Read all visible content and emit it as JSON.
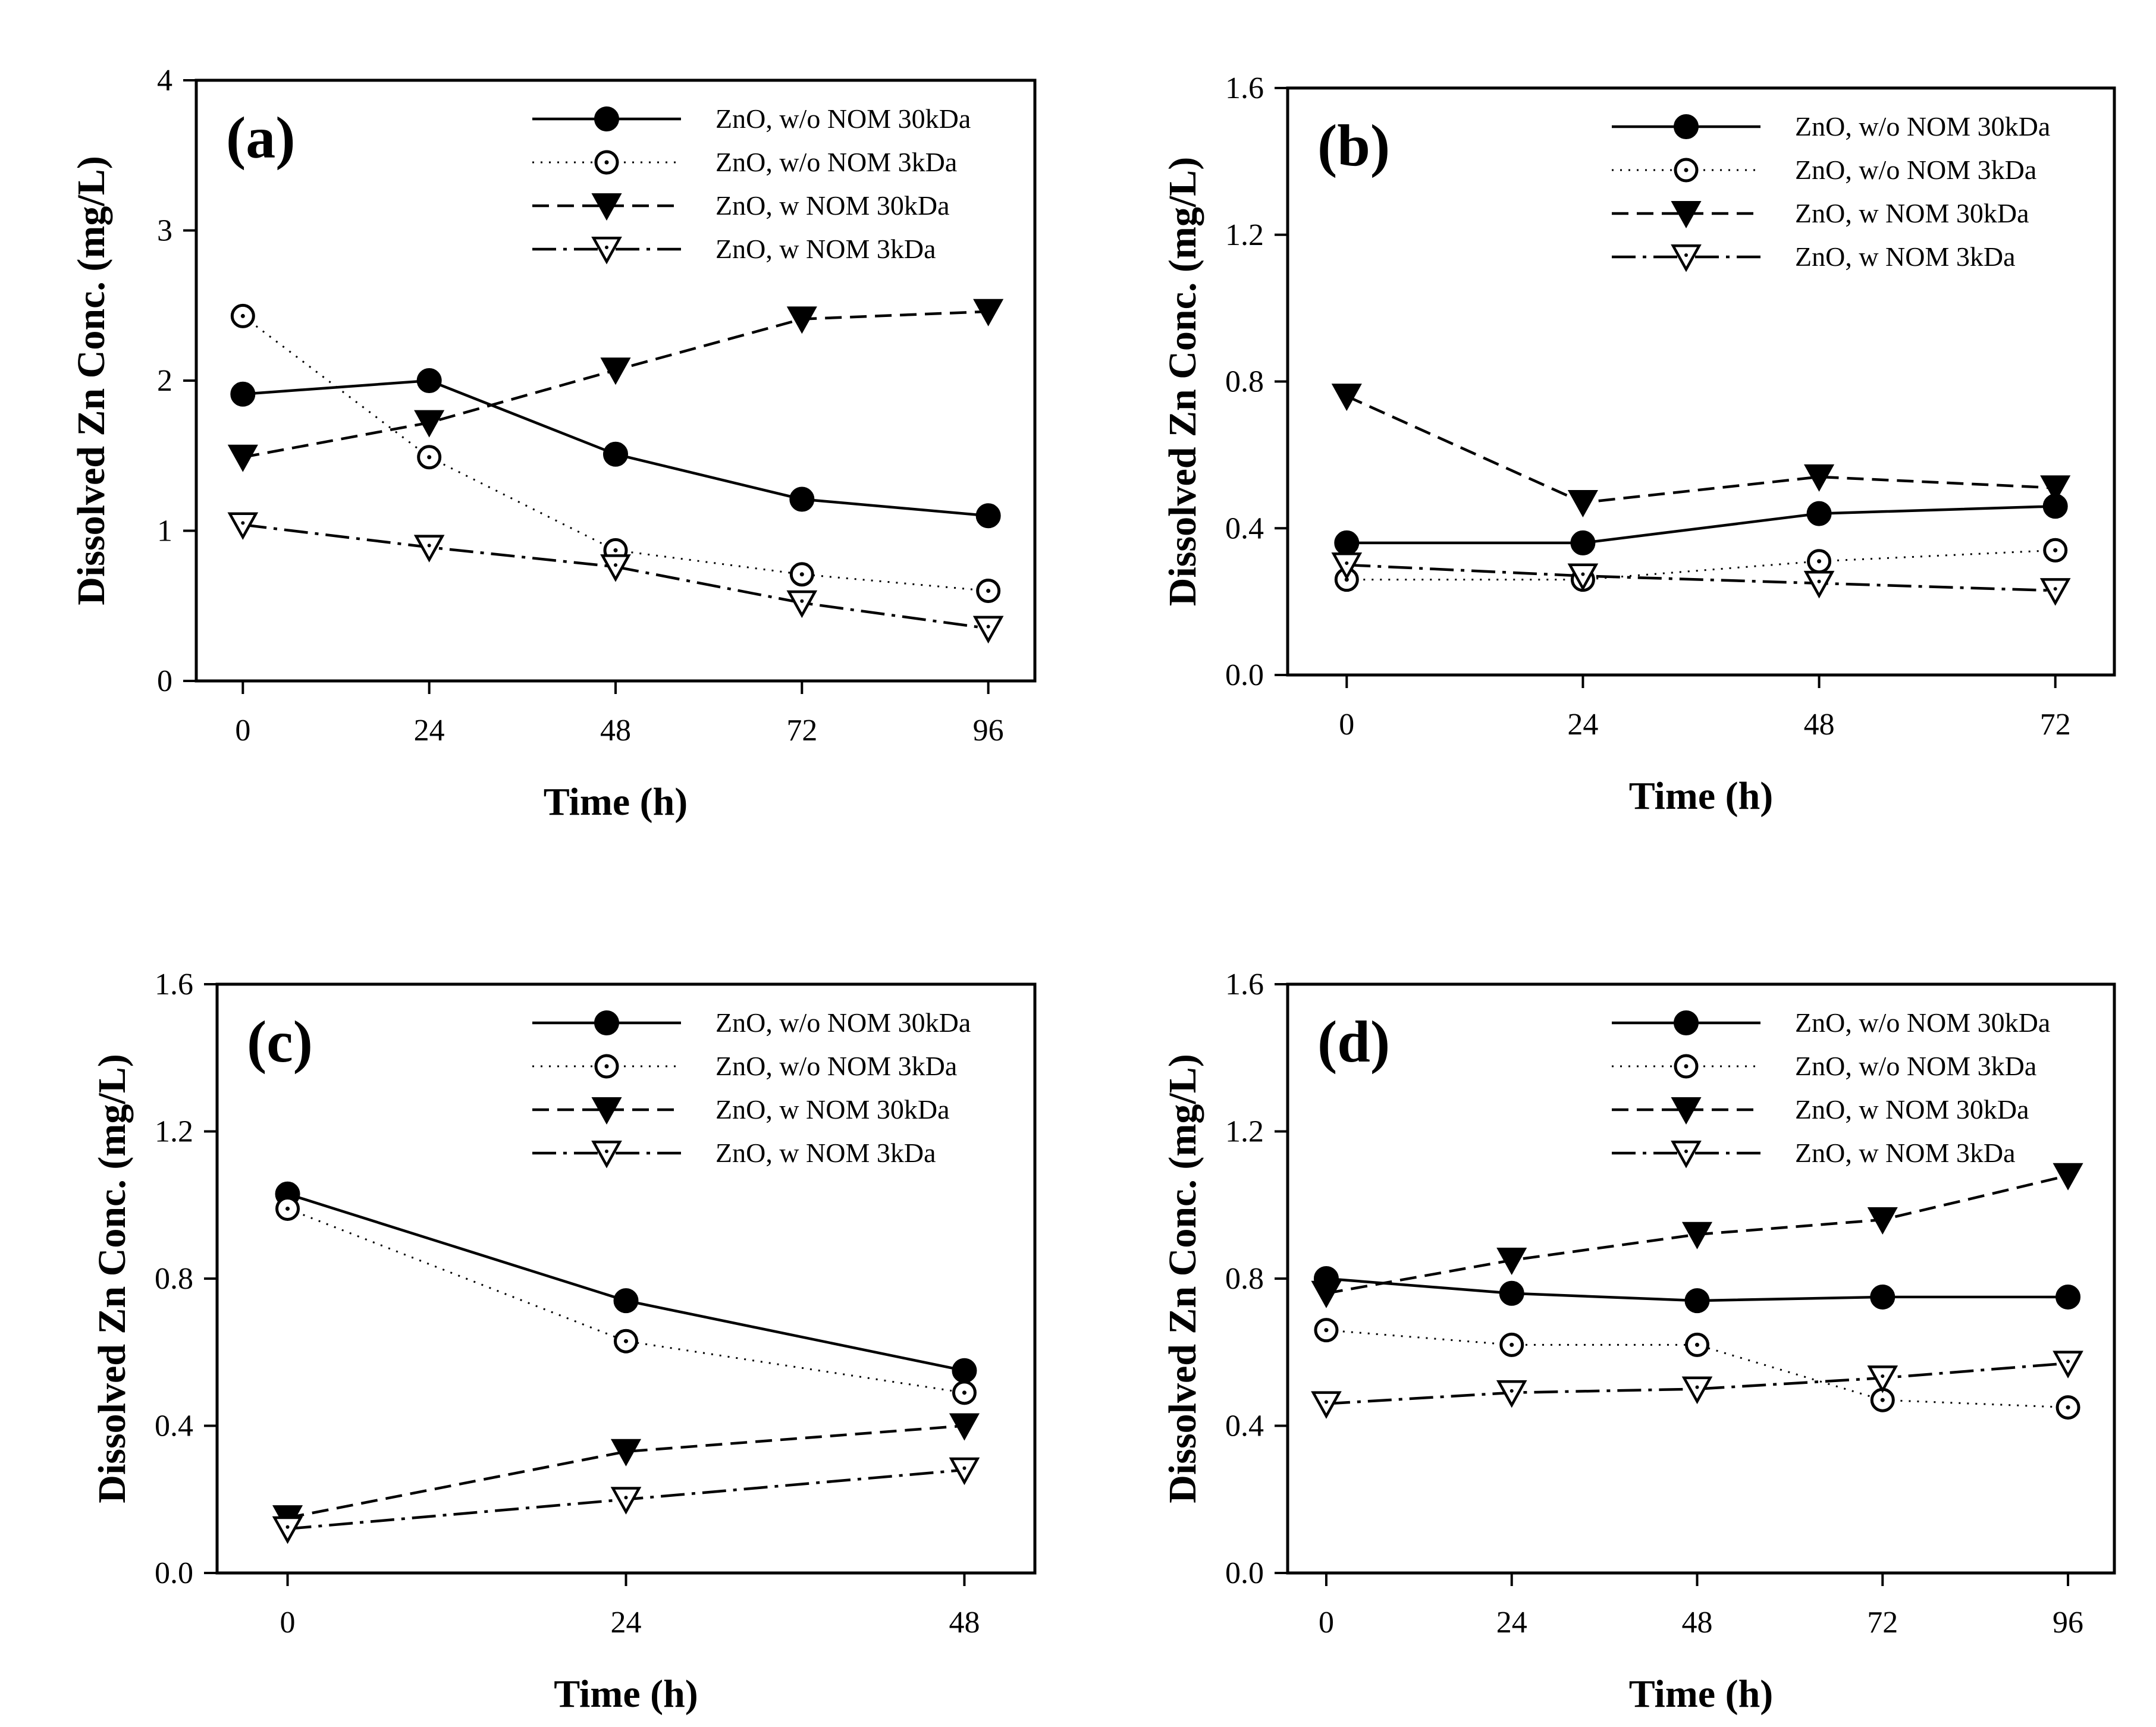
{
  "chart_data": [
    {
      "type": "line",
      "panel_label": "(a)",
      "xlabel": "Time (h)",
      "ylabel": "Dissolved Zn Conc. (mg/L)",
      "xlim": [
        -6,
        102
      ],
      "ylim": [
        0,
        4
      ],
      "xticks": [
        "0",
        "24",
        "48",
        "72",
        "96"
      ],
      "xtick_values": [
        0,
        24,
        48,
        72,
        96
      ],
      "yticks": [
        "0",
        "1",
        "2",
        "3",
        "4"
      ],
      "ytick_values": [
        0,
        1,
        2,
        3,
        4
      ],
      "legend_position": "top-right",
      "grid": false,
      "x": [
        0,
        24,
        48,
        72,
        96
      ],
      "series": [
        {
          "name": "ZnO, w/o NOM 30kDa",
          "marker": "filled-circle",
          "line": "solid",
          "values": [
            1.91,
            2.0,
            1.51,
            1.21,
            1.1
          ]
        },
        {
          "name": "ZnO, w/o NOM 3kDa",
          "marker": "open-circle",
          "line": "dotted",
          "values": [
            2.43,
            1.49,
            0.87,
            0.71,
            0.6
          ]
        },
        {
          "name": "ZnO, w NOM 30kDa",
          "marker": "filled-triangle-down",
          "line": "dashed",
          "values": [
            1.49,
            1.72,
            2.07,
            2.41,
            2.46
          ]
        },
        {
          "name": "ZnO, w NOM 3kDa",
          "marker": "open-triangle-down",
          "line": "dashdot",
          "values": [
            1.04,
            0.89,
            0.76,
            0.52,
            0.35
          ]
        }
      ]
    },
    {
      "type": "line",
      "panel_label": "(b)",
      "xlabel": "Time (h)",
      "ylabel": "Dissolved Zn Conc. (mg/L)",
      "xlim": [
        -6,
        78
      ],
      "ylim": [
        0,
        1.6
      ],
      "xticks": [
        "0",
        "24",
        "48",
        "72"
      ],
      "xtick_values": [
        0,
        24,
        48,
        72
      ],
      "yticks": [
        "0.0",
        "0.4",
        "0.8",
        "1.2",
        "1.6"
      ],
      "ytick_values": [
        0,
        0.4,
        0.8,
        1.2,
        1.6
      ],
      "legend_position": "top-right",
      "grid": false,
      "x": [
        0,
        24,
        48,
        72
      ],
      "series": [
        {
          "name": "ZnO, w/o NOM 30kDa",
          "marker": "filled-circle",
          "line": "solid",
          "values": [
            0.36,
            0.36,
            0.44,
            0.46
          ]
        },
        {
          "name": "ZnO, w/o NOM 3kDa",
          "marker": "open-circle",
          "line": "dotted",
          "values": [
            0.26,
            0.26,
            0.31,
            0.34
          ]
        },
        {
          "name": "ZnO, w NOM 30kDa",
          "marker": "filled-triangle-down",
          "line": "dashed",
          "values": [
            0.76,
            0.47,
            0.54,
            0.51
          ]
        },
        {
          "name": "ZnO, w NOM 3kDa",
          "marker": "open-triangle-down",
          "line": "dashdot",
          "values": [
            0.3,
            0.27,
            0.25,
            0.23
          ]
        }
      ]
    },
    {
      "type": "line",
      "panel_label": "(c)",
      "xlabel": "Time (h)",
      "ylabel": "Dissolved Zn Conc. (mg/L)",
      "xlim": [
        -5,
        53
      ],
      "ylim": [
        0,
        1.6
      ],
      "xticks": [
        "0",
        "24",
        "48"
      ],
      "xtick_values": [
        0,
        24,
        48
      ],
      "yticks": [
        "0.0",
        "0.4",
        "0.8",
        "1.2",
        "1.6"
      ],
      "ytick_values": [
        0,
        0.4,
        0.8,
        1.2,
        1.6
      ],
      "legend_position": "top-right",
      "grid": false,
      "x": [
        0,
        24,
        48
      ],
      "series": [
        {
          "name": "ZnO, w/o NOM 30kDa",
          "marker": "filled-circle",
          "line": "solid",
          "values": [
            1.03,
            0.74,
            0.55
          ]
        },
        {
          "name": "ZnO, w/o NOM 3kDa",
          "marker": "open-circle",
          "line": "dotted",
          "values": [
            0.99,
            0.63,
            0.49
          ]
        },
        {
          "name": "ZnO, w NOM 30kDa",
          "marker": "filled-triangle-down",
          "line": "dashed",
          "values": [
            0.15,
            0.33,
            0.4
          ]
        },
        {
          "name": "ZnO, w NOM 3kDa",
          "marker": "open-triangle-down",
          "line": "dashdot",
          "values": [
            0.12,
            0.2,
            0.28
          ]
        }
      ]
    },
    {
      "type": "line",
      "panel_label": "(d)",
      "xlabel": "Time (h)",
      "ylabel": "Dissolved Zn Conc. (mg/L)",
      "xlim": [
        -5,
        102
      ],
      "ylim": [
        0,
        1.6
      ],
      "xticks": [
        "0",
        "24",
        "48",
        "72",
        "96"
      ],
      "xtick_values": [
        0,
        24,
        48,
        72,
        96
      ],
      "yticks": [
        "0.0",
        "0.4",
        "0.8",
        "1.2",
        "1.6"
      ],
      "ytick_values": [
        0,
        0.4,
        0.8,
        1.2,
        1.6
      ],
      "legend_position": "top-right",
      "grid": false,
      "x": [
        0,
        24,
        48,
        72,
        96
      ],
      "series": [
        {
          "name": "ZnO, w/o NOM 30kDa",
          "marker": "filled-circle",
          "line": "solid",
          "values": [
            0.8,
            0.76,
            0.74,
            0.75,
            0.75
          ]
        },
        {
          "name": "ZnO, w/o NOM 3kDa",
          "marker": "open-circle",
          "line": "dotted",
          "values": [
            0.66,
            0.62,
            0.62,
            0.47,
            0.45
          ]
        },
        {
          "name": "ZnO, w NOM 30kDa",
          "marker": "filled-triangle-down",
          "line": "dashed",
          "values": [
            0.76,
            0.85,
            0.92,
            0.96,
            1.08
          ]
        },
        {
          "name": "ZnO, w NOM 3kDa",
          "marker": "open-triangle-down",
          "line": "dashdot",
          "values": [
            0.46,
            0.49,
            0.5,
            0.53,
            0.57
          ]
        }
      ]
    }
  ]
}
